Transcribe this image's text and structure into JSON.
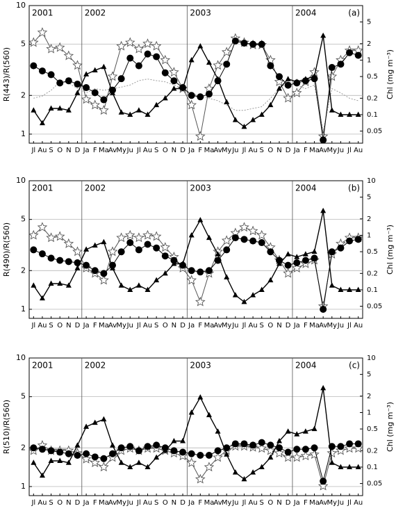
{
  "chart_data": [
    {
      "type": "line",
      "panel_label": "(a)",
      "ylabel": "R(443)/R(560)",
      "y2label": "Chl (mg m⁻³)",
      "log": true,
      "grid": true,
      "years": [
        "2001",
        "2002",
        "2003",
        "2004"
      ],
      "categories": [
        "Jl",
        "Au",
        "S",
        "O",
        "N",
        "D",
        "Ja",
        "F",
        "Ma",
        "Av",
        "My",
        "Ju",
        "Jl",
        "Au",
        "S",
        "O",
        "N",
        "D",
        "Ja",
        "F",
        "Ma",
        "Av",
        "My",
        "Ju",
        "Jl",
        "Au",
        "S",
        "O",
        "N",
        "D",
        "Ja",
        "F",
        "Ma",
        "Av",
        "My",
        "Ju",
        "Jl",
        "Au"
      ],
      "ylim": [
        0.85,
        10
      ],
      "yticks": [
        1,
        2,
        5,
        10
      ],
      "y2lim": [
        0.03,
        10
      ],
      "y2ticks": [
        0.05,
        0.1,
        0.2,
        0.5,
        1,
        2,
        5
      ],
      "series": [
        {
          "color": "#999999",
          "marker": "none",
          "dash": true,
          "axis": "y2",
          "values": [
            0.2,
            0.22,
            0.28,
            0.4,
            0.38,
            0.3,
            0.25,
            0.3,
            0.28,
            0.3,
            0.32,
            0.35,
            0.42,
            0.45,
            0.42,
            0.4,
            0.35,
            0.3,
            0.25,
            0.22,
            0.2,
            0.18,
            0.15,
            0.12,
            0.12,
            0.13,
            0.14,
            0.2,
            0.3,
            0.4,
            0.35,
            0.3,
            0.35,
            0.05,
            0.3,
            0.25,
            0.2,
            0.18
          ]
        },
        {
          "color": "#555555",
          "marker": "star",
          "axis": "y2",
          "values": [
            2.1,
            3.2,
            1.6,
            1.7,
            1.2,
            0.8,
            0.19,
            0.15,
            0.12,
            0.5,
            1.8,
            2.1,
            1.6,
            2.0,
            1.8,
            1.0,
            0.6,
            0.3,
            0.15,
            0.04,
            0.3,
            0.8,
            1.4,
            2.5,
            2.1,
            1.9,
            1.9,
            1.0,
            0.4,
            0.2,
            0.25,
            0.4,
            0.6,
            0.04,
            0.5,
            1.0,
            1.5,
            1.5
          ]
        },
        {
          "color": "#000000",
          "marker": "triangle",
          "axis": "y2",
          "values": [
            0.12,
            0.07,
            0.13,
            0.13,
            0.12,
            0.25,
            0.55,
            0.65,
            0.75,
            0.25,
            0.11,
            0.1,
            0.12,
            0.1,
            0.15,
            0.2,
            0.3,
            0.3,
            1.0,
            1.8,
            0.9,
            0.45,
            0.17,
            0.08,
            0.06,
            0.08,
            0.1,
            0.15,
            0.3,
            0.45,
            0.4,
            0.45,
            0.5,
            2.8,
            0.12,
            0.1,
            0.1,
            0.1
          ]
        },
        {
          "color": "#000000",
          "marker": "circle",
          "values": [
            3.4,
            3.1,
            2.9,
            2.5,
            2.6,
            2.45,
            2.3,
            2.1,
            1.85,
            2.2,
            2.7,
            3.9,
            3.4,
            4.2,
            4.0,
            3.0,
            2.6,
            2.3,
            2.0,
            1.95,
            2.05,
            2.6,
            3.5,
            5.3,
            5.1,
            5.0,
            5.0,
            3.4,
            2.8,
            2.4,
            2.5,
            2.6,
            2.7,
            0.9,
            3.3,
            3.5,
            4.3,
            4.1
          ]
        }
      ]
    },
    {
      "type": "line",
      "panel_label": "(b)",
      "ylabel": "R(490)/R(560)",
      "y2label": "Chl (mg m⁻³)",
      "log": true,
      "grid": true,
      "years": [
        "2001",
        "2002",
        "2003",
        "2004"
      ],
      "categories": [
        "Jl",
        "Au",
        "S",
        "O",
        "N",
        "D",
        "Ja",
        "F",
        "Ma",
        "Av",
        "My",
        "Ju",
        "Jl",
        "Au",
        "S",
        "O",
        "N",
        "D",
        "Ja",
        "F",
        "Ma",
        "Av",
        "My",
        "Ju",
        "Jl",
        "Au",
        "S",
        "O",
        "N",
        "D",
        "Ja",
        "F",
        "Ma",
        "Av",
        "My",
        "Ju",
        "Jl",
        "Au"
      ],
      "ylim": [
        0.85,
        10
      ],
      "yticks": [
        1,
        2,
        5,
        10
      ],
      "y2lim": [
        0.03,
        10
      ],
      "y2ticks": [
        0.05,
        0.1,
        0.2,
        0.5,
        1,
        2,
        5,
        10
      ],
      "series": [
        {
          "color": "#555555",
          "marker": "star",
          "axis": "y2",
          "values": [
            1.0,
            1.4,
            0.9,
            0.95,
            0.7,
            0.5,
            0.25,
            0.2,
            0.15,
            0.5,
            0.9,
            1.0,
            0.9,
            1.0,
            0.95,
            0.6,
            0.4,
            0.25,
            0.15,
            0.06,
            0.2,
            0.5,
            0.8,
            1.1,
            1.4,
            1.2,
            1.0,
            0.6,
            0.35,
            0.2,
            0.25,
            0.3,
            0.35,
            0.05,
            0.45,
            0.7,
            0.9,
            0.9
          ]
        },
        {
          "color": "#000000",
          "marker": "triangle",
          "axis": "y2",
          "values": [
            0.12,
            0.07,
            0.13,
            0.13,
            0.12,
            0.25,
            0.55,
            0.65,
            0.75,
            0.25,
            0.12,
            0.1,
            0.12,
            0.1,
            0.15,
            0.2,
            0.3,
            0.3,
            1.0,
            1.9,
            0.9,
            0.45,
            0.17,
            0.08,
            0.06,
            0.08,
            0.1,
            0.15,
            0.3,
            0.45,
            0.4,
            0.45,
            0.5,
            2.8,
            0.12,
            0.1,
            0.1,
            0.1
          ]
        },
        {
          "color": "#000000",
          "marker": "circle",
          "values": [
            2.9,
            2.7,
            2.5,
            2.4,
            2.35,
            2.3,
            2.2,
            2.0,
            1.9,
            2.2,
            2.8,
            3.3,
            2.9,
            3.2,
            3.0,
            2.6,
            2.4,
            2.2,
            2.0,
            1.95,
            2.0,
            2.4,
            2.9,
            3.6,
            3.5,
            3.4,
            3.3,
            2.8,
            2.4,
            2.2,
            2.3,
            2.4,
            2.5,
            1.0,
            2.8,
            3.0,
            3.4,
            3.5
          ]
        }
      ]
    },
    {
      "type": "line",
      "panel_label": "(c)",
      "ylabel": "R(510)/R(560)",
      "y2label": "Chl (mg m⁻³)",
      "log": true,
      "grid": true,
      "years": [
        "2001",
        "2002",
        "2003",
        "2004"
      ],
      "categories": [
        "Jl",
        "Au",
        "S",
        "O",
        "N",
        "D",
        "Ja",
        "F",
        "Ma",
        "Av",
        "My",
        "Ju",
        "Jl",
        "Au",
        "S",
        "O",
        "N",
        "D",
        "Ja",
        "F",
        "Ma",
        "Av",
        "My",
        "Ju",
        "Jl",
        "Au",
        "S",
        "O",
        "N",
        "D",
        "Ja",
        "F",
        "Ma",
        "Av",
        "My",
        "Ju",
        "Jl",
        "Au"
      ],
      "ylim": [
        0.85,
        10
      ],
      "yticks": [
        1,
        2,
        5,
        10
      ],
      "y2lim": [
        0.03,
        10
      ],
      "y2ticks": [
        0.05,
        0.1,
        0.2,
        0.5,
        1,
        2,
        5,
        10
      ],
      "series": [
        {
          "color": "#555555",
          "marker": "star",
          "axis": "y2",
          "values": [
            0.2,
            0.25,
            0.2,
            0.2,
            0.2,
            0.18,
            0.14,
            0.12,
            0.1,
            0.15,
            0.2,
            0.22,
            0.2,
            0.22,
            0.22,
            0.2,
            0.18,
            0.16,
            0.12,
            0.06,
            0.1,
            0.15,
            0.2,
            0.24,
            0.24,
            0.23,
            0.22,
            0.2,
            0.18,
            0.15,
            0.15,
            0.16,
            0.17,
            0.045,
            0.18,
            0.2,
            0.22,
            0.22
          ]
        },
        {
          "color": "#000000",
          "marker": "triangle",
          "axis": "y2",
          "values": [
            0.12,
            0.07,
            0.13,
            0.13,
            0.12,
            0.25,
            0.55,
            0.65,
            0.75,
            0.25,
            0.12,
            0.1,
            0.12,
            0.1,
            0.15,
            0.2,
            0.3,
            0.3,
            1.0,
            1.9,
            0.9,
            0.45,
            0.17,
            0.08,
            0.06,
            0.08,
            0.1,
            0.15,
            0.3,
            0.45,
            0.4,
            0.45,
            0.5,
            2.8,
            0.12,
            0.1,
            0.1,
            0.1
          ]
        },
        {
          "color": "#000000",
          "marker": "circle",
          "values": [
            2.0,
            1.95,
            1.9,
            1.85,
            1.8,
            1.75,
            1.8,
            1.7,
            1.65,
            1.8,
            2.0,
            2.05,
            1.9,
            2.05,
            2.1,
            2.0,
            1.9,
            1.85,
            1.8,
            1.75,
            1.75,
            1.9,
            2.0,
            2.15,
            2.15,
            2.1,
            2.2,
            2.1,
            2.0,
            1.85,
            1.95,
            1.95,
            2.0,
            1.1,
            2.05,
            2.05,
            2.15,
            2.15
          ]
        }
      ]
    }
  ]
}
